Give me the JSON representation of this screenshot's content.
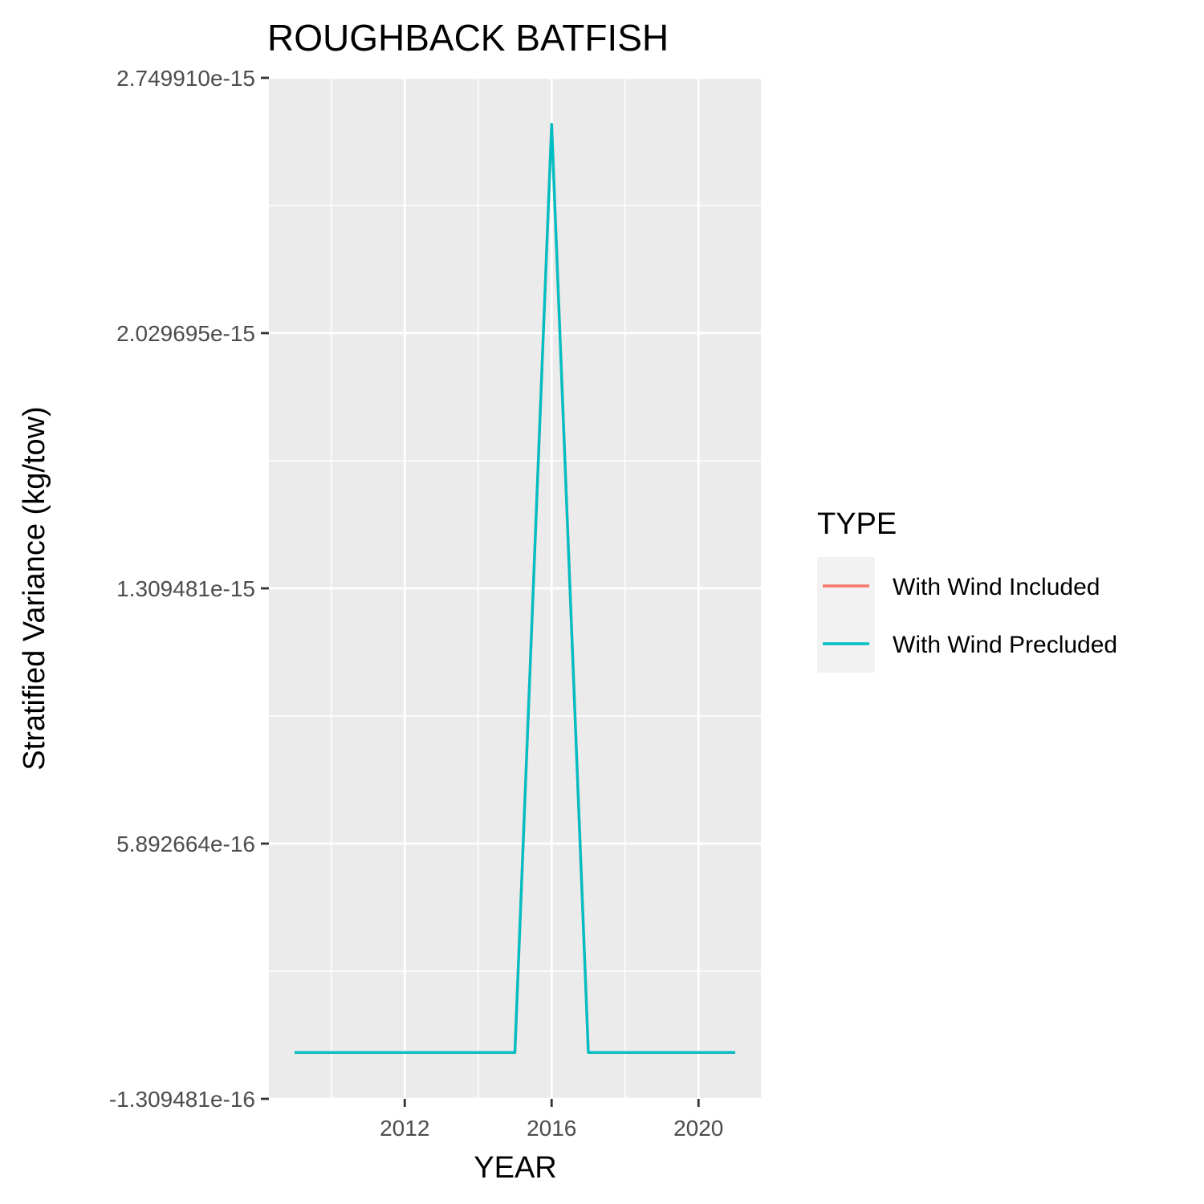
{
  "chart_data": {
    "type": "line",
    "title": "ROUGHBACK BATFISH",
    "xlabel": "YEAR",
    "ylabel": "Stratified Variance (kg/tow)",
    "xlim": [
      2008.3,
      2021.7
    ],
    "ylim": [
      -1.309481e-16,
      2.74991e-15
    ],
    "x_ticks": [
      2012,
      2016,
      2020
    ],
    "y_ticks": [
      {
        "value": -1.309481e-16,
        "label": "-1.309481e-16"
      },
      {
        "value": 5.892664e-16,
        "label": "5.892664e-16"
      },
      {
        "value": 1.309481e-15,
        "label": "1.309481e-15"
      },
      {
        "value": 2.029695e-15,
        "label": "2.029695e-15"
      },
      {
        "value": 2.74991e-15,
        "label": "2.749910e-15"
      }
    ],
    "grid": true,
    "legend": {
      "title": "TYPE",
      "placement": "right"
    },
    "x": [
      2009,
      2010,
      2011,
      2012,
      2013,
      2014,
      2015,
      2016,
      2017,
      2018,
      2019,
      2020,
      2021
    ],
    "series": [
      {
        "name": "With Wind Included",
        "color": "#F8766D",
        "values": [
          0,
          0,
          0,
          0,
          0,
          0,
          0,
          2.619e-15,
          0,
          0,
          0,
          0,
          0
        ]
      },
      {
        "name": "With Wind Precluded",
        "color": "#00BFC4",
        "values": [
          0,
          0,
          0,
          0,
          0,
          0,
          0,
          2.619e-15,
          0,
          0,
          0,
          0,
          0
        ]
      }
    ],
    "panel_background": "#EBEBEB",
    "grid_color": "#FFFFFF",
    "legend_key_background": "#F2F2F2"
  }
}
